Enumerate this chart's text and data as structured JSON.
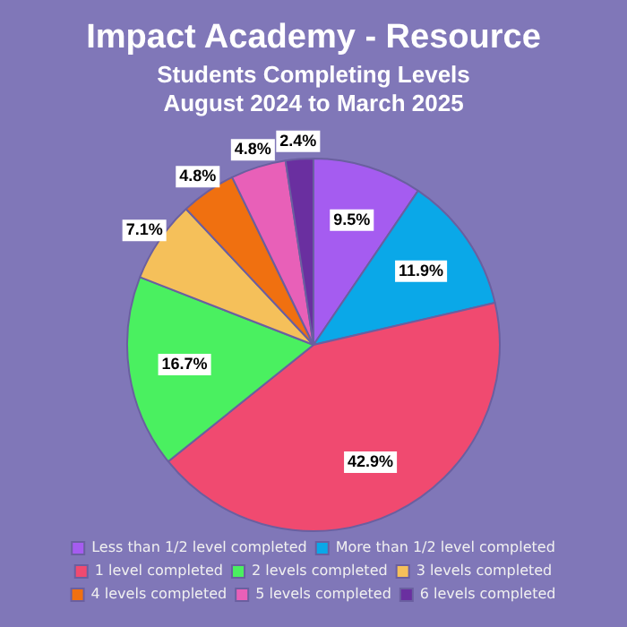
{
  "chart_data": {
    "type": "pie",
    "title": "Impact Academy - Resource",
    "subtitle": "Students Completing Levels August 2024 to March 2025",
    "categories": [
      "Less than 1/2 level completed",
      "More than 1/2 level completed",
      "1 level completed",
      "2 levels completed",
      "3 levels completed",
      "4 levels completed",
      "5 levels completed",
      "6 levels completed"
    ],
    "values": [
      9.5,
      11.9,
      42.9,
      16.7,
      7.1,
      4.8,
      4.8,
      2.4
    ],
    "colors": [
      "#a55cf0",
      "#0aa8e8",
      "#f04a70",
      "#4af060",
      "#f5c05a",
      "#f07010",
      "#e860b8",
      "#6a2fa0"
    ],
    "value_labels": [
      "9.5%",
      "11.9%",
      "42.9%",
      "16.7%",
      "7.1%",
      "4.8%",
      "4.8%",
      "2.4%"
    ],
    "legend": "bottom"
  }
}
